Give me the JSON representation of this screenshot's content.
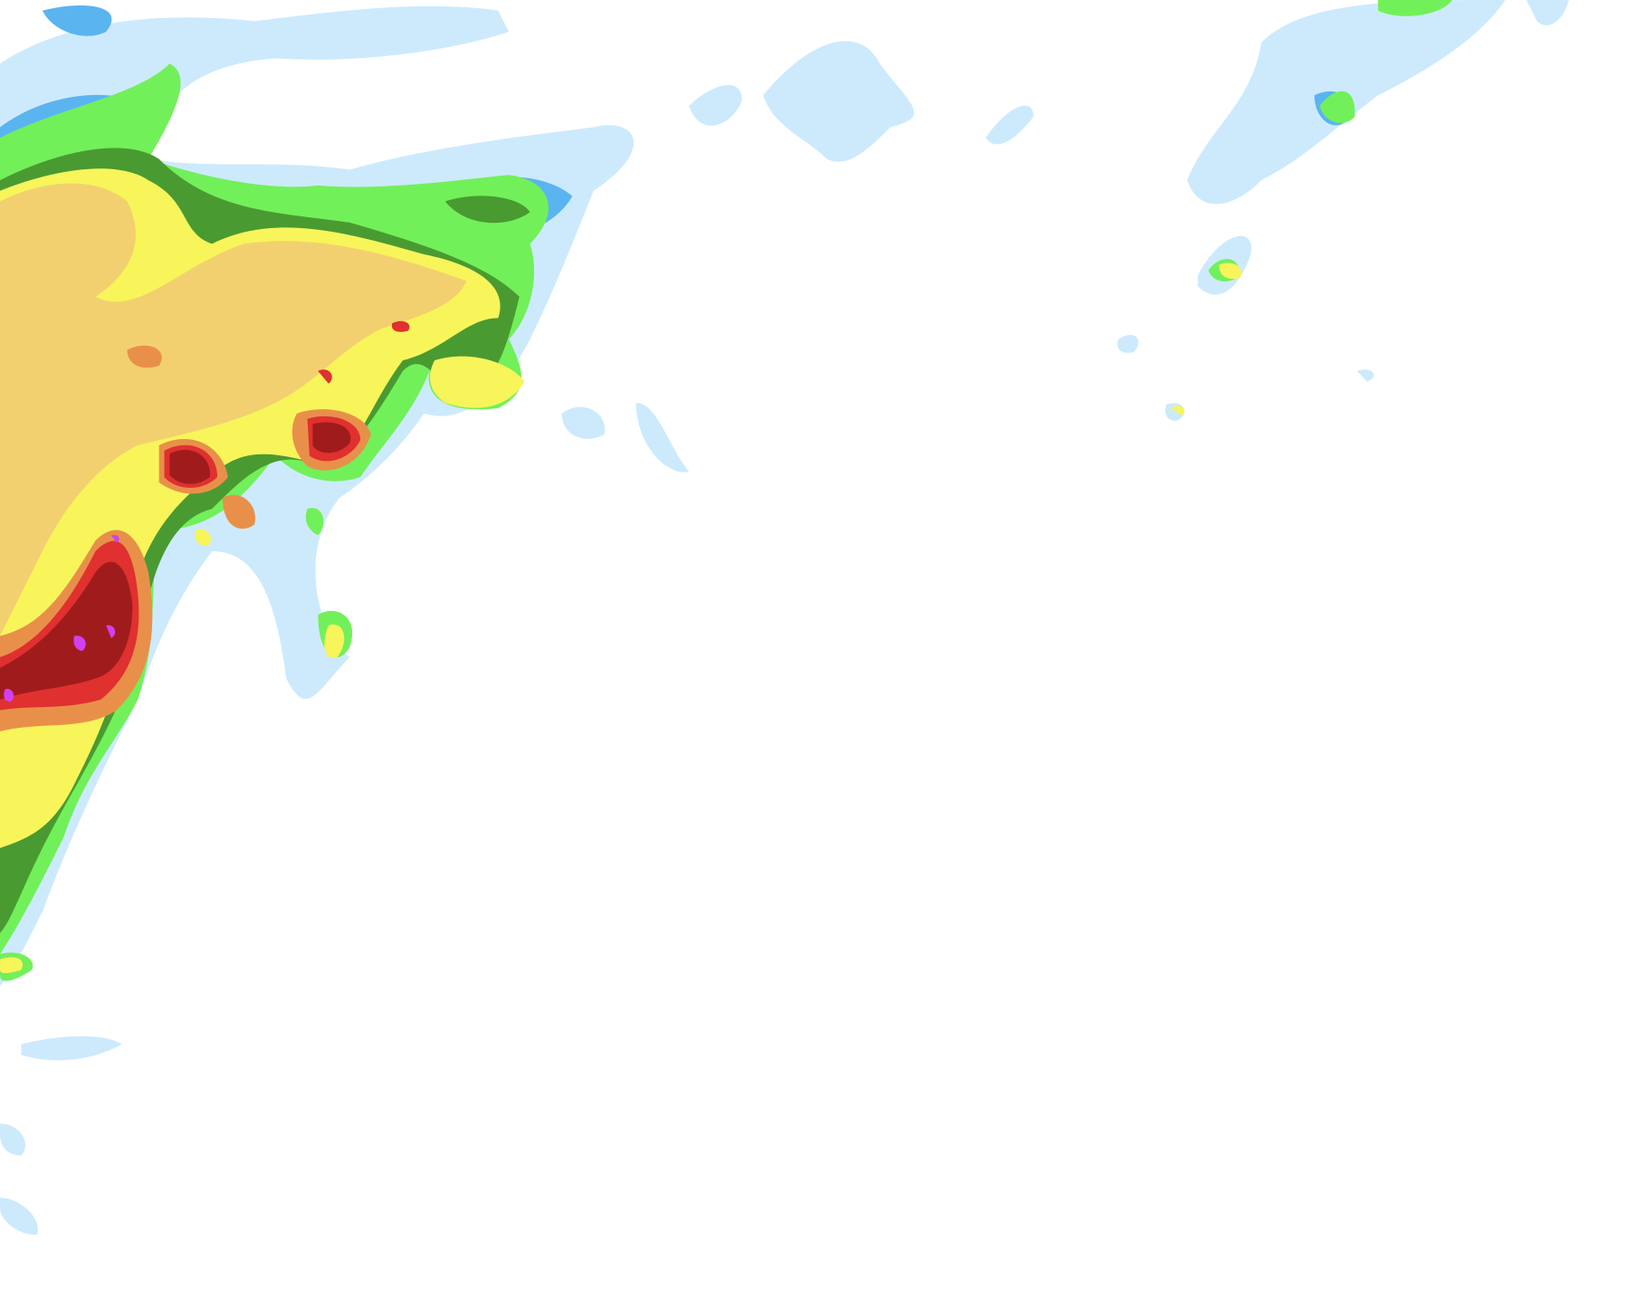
{
  "map": {
    "colors": {
      "background": "#ffffff",
      "very_light": "#cdeafd",
      "light": "#5ab4f0",
      "light_moderate": "#72f05a",
      "moderate": "#4a9a32",
      "moderate_heavy": "#f7f55a",
      "heavy": "#f2d070",
      "very_heavy": "#e8904a",
      "intense": "#e03030",
      "severe": "#a01c1c",
      "extreme": "#d040f0"
    }
  }
}
